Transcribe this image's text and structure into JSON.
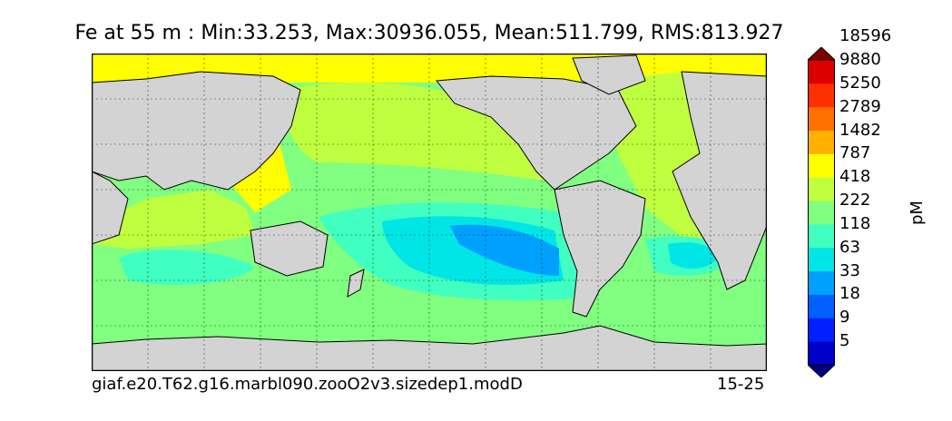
{
  "title": "Fe at 55 m : Min:33.253, Max:30936.055, Mean:511.799, RMS:813.927",
  "caption_left": "giaf.e20.T62.g16.marbl090.zooO2v3.sizedep1.modD",
  "caption_right": "15-25",
  "colorbar": {
    "units": "pM",
    "levels": [
      "5",
      "9",
      "18",
      "33",
      "63",
      "118",
      "222",
      "418",
      "787",
      "1482",
      "2789",
      "5250",
      "9880",
      "18596"
    ],
    "colors": [
      "#000080",
      "#0000cd",
      "#0020ff",
      "#0060ff",
      "#00a0ff",
      "#00e5e5",
      "#40ffc0",
      "#80ff80",
      "#c0ff40",
      "#ffff00",
      "#ffb000",
      "#ff7000",
      "#ff3000",
      "#dd0000",
      "#800000"
    ]
  },
  "map": {
    "land_color": "#d3d3d3",
    "ocean_base_color": "#80ff80",
    "grid": true
  }
}
